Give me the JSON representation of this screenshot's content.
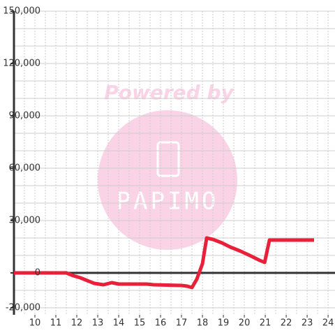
{
  "chart_data": {
    "type": "line",
    "x": [
      9.0,
      11.5,
      11.83,
      12.17,
      12.5,
      12.83,
      13.27,
      13.67,
      14.0,
      15.33,
      15.67,
      17.0,
      17.27,
      17.5,
      17.73,
      18.0,
      18.2,
      18.5,
      18.93,
      19.33,
      19.83,
      20.33,
      20.73,
      20.97,
      21.2,
      23.33
    ],
    "series": [
      {
        "color": "#e8203a",
        "values": [
          0,
          0,
          -1600,
          -2800,
          -4400,
          -6000,
          -6800,
          -5600,
          -6400,
          -6400,
          -6800,
          -7200,
          -7600,
          -8400,
          -3600,
          5200,
          20000,
          19200,
          17200,
          14800,
          12400,
          9600,
          7200,
          6000,
          18800,
          18800
        ]
      }
    ],
    "xlim": [
      9,
      24.33
    ],
    "xticks": [
      10,
      11,
      12,
      13,
      14,
      15,
      16,
      17,
      18,
      19,
      20,
      21,
      22,
      23,
      24
    ],
    "xgrid": [
      9.5,
      10,
      10.5,
      11,
      11.5,
      12,
      12.5,
      13,
      13.5,
      14,
      14.5,
      15,
      15.5,
      16,
      16.5,
      17,
      17.5,
      18,
      18.5,
      19,
      19.5,
      20,
      20.5,
      21,
      21.5,
      22,
      22.5,
      23,
      23.5,
      24
    ],
    "ylim": [
      -24000,
      150000
    ],
    "yticks": [
      {
        "value": -20000,
        "label": "-20,000"
      },
      0,
      {
        "value": 30000,
        "label": "30,000"
      },
      {
        "value": 60000,
        "label": "60,000"
      },
      {
        "value": 90000,
        "label": "90,000"
      },
      {
        "value": 120000,
        "label": "120,000"
      },
      {
        "value": 150000,
        "label": "150,000"
      }
    ],
    "ygrid": [
      -20000,
      -10000,
      10000,
      20000,
      30000,
      40000,
      50000,
      60000,
      70000,
      80000,
      90000,
      100000,
      110000,
      120000,
      130000,
      140000,
      150000
    ],
    "watermark": {
      "top": "Powered by",
      "logo": "PAPIMO"
    }
  }
}
